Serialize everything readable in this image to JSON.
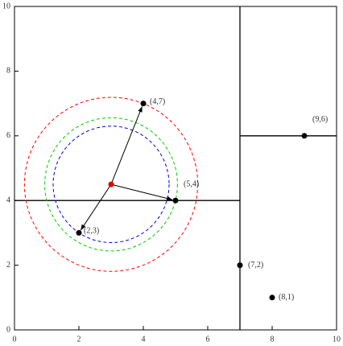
{
  "chart_data": {
    "type": "scatter",
    "xlim": [
      0,
      10
    ],
    "ylim": [
      0,
      10
    ],
    "xticks": [
      0,
      2,
      4,
      6,
      8,
      10
    ],
    "yticks": [
      0,
      2,
      4,
      6,
      8,
      10
    ],
    "points": {
      "x": [
        2,
        4,
        5,
        7,
        8,
        9
      ],
      "y": [
        3,
        7,
        4,
        2,
        1,
        6
      ],
      "labels": [
        "(2,3)",
        "(4,7)",
        "(5,4)",
        "(7,2)",
        "(8,1)",
        "(9,6)"
      ],
      "color": "#000000"
    },
    "query": {
      "x": 3,
      "y": 4.5,
      "color": "#dd0000"
    },
    "splits": [
      {
        "x": [
          7,
          7
        ],
        "y": [
          0,
          10
        ]
      },
      {
        "x": [
          0,
          7
        ],
        "y": [
          4,
          4
        ]
      },
      {
        "x": [
          7,
          10
        ],
        "y": [
          6,
          6
        ]
      }
    ],
    "circles": [
      {
        "radius": 2.69,
        "color": "#ff0000"
      },
      {
        "radius": 2.06,
        "color": "#00cc00"
      },
      {
        "radius": 1.8,
        "color": "#0000dd"
      }
    ],
    "arrows": {
      "x": [
        4,
        5,
        2
      ],
      "y": [
        7,
        4,
        3
      ]
    }
  }
}
